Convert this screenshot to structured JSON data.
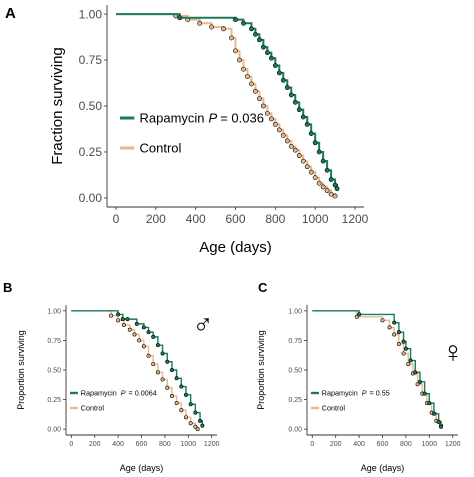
{
  "figure": {
    "panels": [
      {
        "label": "A",
        "ylabel": "Fraction surviving",
        "xlabel": "Age (days)",
        "yticks": [
          "0.00",
          "0.25",
          "0.50",
          "0.75",
          "1.00"
        ],
        "xticks": [
          "0",
          "200",
          "400",
          "600",
          "800",
          "1000",
          "1200"
        ],
        "legend": [
          {
            "name": "Rapamycin",
            "p_label": "P",
            "p_value": "= 0.036"
          },
          {
            "name": "Control",
            "p_label": "",
            "p_value": ""
          }
        ],
        "sex_symbol": ""
      },
      {
        "label": "B",
        "ylabel": "Proportion surviving",
        "xlabel": "Age (days)",
        "yticks": [
          "0.00",
          "0.25",
          "0.50",
          "0.75",
          "1.00"
        ],
        "xticks": [
          "0",
          "200",
          "400",
          "600",
          "800",
          "1000",
          "1200"
        ],
        "legend": [
          {
            "name": "Rapamycin",
            "p_label": "P",
            "p_value": "= 0.0064"
          },
          {
            "name": "Control",
            "p_label": "",
            "p_value": ""
          }
        ],
        "sex_symbol": "♂"
      },
      {
        "label": "C",
        "ylabel": "Proportion surviving",
        "xlabel": "Age (days)",
        "yticks": [
          "0.00",
          "0.25",
          "0.50",
          "0.75",
          "1.00"
        ],
        "xticks": [
          "0",
          "200",
          "400",
          "600",
          "800",
          "1000",
          "1200"
        ],
        "legend": [
          {
            "name": "Rapamycin",
            "p_label": "P",
            "p_value": "= 0.55"
          },
          {
            "name": "Control",
            "p_label": "",
            "p_value": ""
          }
        ],
        "sex_symbol": "♀"
      }
    ]
  },
  "colors": {
    "rapamycin": "#1a7a5c",
    "control": "#e7b98c",
    "axis": "#333333"
  },
  "chart_data": [
    {
      "type": "line",
      "subtype": "kaplan-meier",
      "title": "",
      "xlabel": "Age (days)",
      "ylabel": "Fraction surviving",
      "xlim": [
        0,
        1200
      ],
      "ylim": [
        0,
        1
      ],
      "series": [
        {
          "name": "Rapamycin",
          "x": [
            0,
            320,
            600,
            640,
            680,
            700,
            720,
            740,
            760,
            780,
            800,
            820,
            840,
            860,
            880,
            900,
            920,
            940,
            960,
            980,
            1000,
            1020,
            1040,
            1060,
            1080,
            1100,
            1110
          ],
          "y": [
            1.0,
            0.98,
            0.97,
            0.95,
            0.92,
            0.89,
            0.86,
            0.82,
            0.79,
            0.76,
            0.72,
            0.68,
            0.64,
            0.6,
            0.56,
            0.52,
            0.48,
            0.44,
            0.4,
            0.35,
            0.3,
            0.25,
            0.2,
            0.15,
            0.1,
            0.07,
            0.05
          ]
        },
        {
          "name": "Control",
          "x": [
            0,
            300,
            360,
            420,
            480,
            540,
            580,
            600,
            620,
            640,
            660,
            680,
            700,
            720,
            740,
            760,
            780,
            800,
            820,
            840,
            860,
            880,
            900,
            920,
            940,
            960,
            980,
            1000,
            1020,
            1040,
            1060,
            1080,
            1100
          ],
          "y": [
            1.0,
            0.99,
            0.97,
            0.95,
            0.93,
            0.92,
            0.87,
            0.8,
            0.75,
            0.7,
            0.66,
            0.62,
            0.58,
            0.54,
            0.5,
            0.46,
            0.43,
            0.4,
            0.37,
            0.34,
            0.31,
            0.28,
            0.26,
            0.23,
            0.2,
            0.17,
            0.14,
            0.11,
            0.08,
            0.06,
            0.04,
            0.02,
            0.01
          ]
        }
      ]
    },
    {
      "type": "line",
      "subtype": "kaplan-meier",
      "title": "",
      "xlabel": "Age (days)",
      "ylabel": "Proportion surviving",
      "xlim": [
        0,
        1200
      ],
      "ylim": [
        0,
        1
      ],
      "series": [
        {
          "name": "Rapamycin",
          "x": [
            0,
            400,
            440,
            480,
            560,
            620,
            660,
            700,
            740,
            780,
            820,
            860,
            900,
            940,
            980,
            1020,
            1060,
            1100,
            1120
          ],
          "y": [
            1.0,
            0.97,
            0.93,
            0.93,
            0.89,
            0.86,
            0.82,
            0.78,
            0.71,
            0.64,
            0.57,
            0.5,
            0.43,
            0.36,
            0.29,
            0.21,
            0.14,
            0.07,
            0.03
          ]
        },
        {
          "name": "Control",
          "x": [
            0,
            340,
            400,
            450,
            500,
            540,
            580,
            620,
            660,
            700,
            740,
            780,
            820,
            860,
            900,
            940,
            980,
            1020,
            1060,
            1080
          ],
          "y": [
            1.0,
            0.96,
            0.92,
            0.88,
            0.84,
            0.8,
            0.75,
            0.7,
            0.62,
            0.55,
            0.48,
            0.42,
            0.35,
            0.28,
            0.22,
            0.16,
            0.1,
            0.05,
            0.02,
            0.0
          ]
        }
      ]
    },
    {
      "type": "line",
      "subtype": "kaplan-meier",
      "title": "",
      "xlabel": "Age (days)",
      "ylabel": "Proportion surviving",
      "xlim": [
        0,
        1200
      ],
      "ylim": [
        0,
        1
      ],
      "series": [
        {
          "name": "Rapamycin",
          "x": [
            0,
            400,
            700,
            740,
            780,
            800,
            840,
            880,
            920,
            960,
            1000,
            1040,
            1080,
            1100
          ],
          "y": [
            1.0,
            0.97,
            0.9,
            0.82,
            0.74,
            0.68,
            0.58,
            0.48,
            0.4,
            0.3,
            0.22,
            0.13,
            0.06,
            0.02
          ]
        },
        {
          "name": "Control",
          "x": [
            0,
            380,
            600,
            660,
            700,
            740,
            780,
            820,
            860,
            900,
            940,
            980,
            1020,
            1060,
            1100
          ],
          "y": [
            1.0,
            0.95,
            0.92,
            0.86,
            0.8,
            0.72,
            0.64,
            0.55,
            0.47,
            0.38,
            0.3,
            0.22,
            0.14,
            0.07,
            0.03
          ]
        }
      ]
    }
  ]
}
